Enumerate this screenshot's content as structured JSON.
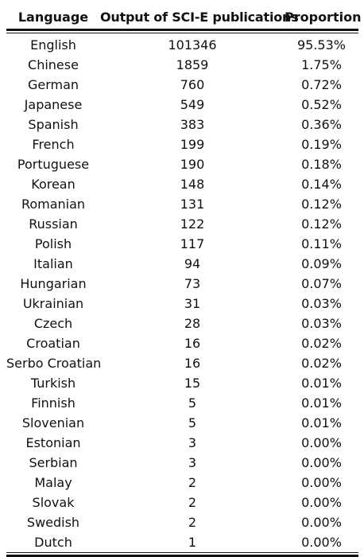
{
  "table": {
    "headers": [
      "Language",
      "Output of SCI-E publications",
      "Proportion"
    ],
    "rows": [
      [
        "English",
        "101346",
        "95.53%"
      ],
      [
        "Chinese",
        "1859",
        "1.75%"
      ],
      [
        "German",
        "760",
        "0.72%"
      ],
      [
        "Japanese",
        "549",
        "0.52%"
      ],
      [
        "Spanish",
        "383",
        "0.36%"
      ],
      [
        "French",
        "199",
        "0.19%"
      ],
      [
        "Portuguese",
        "190",
        "0.18%"
      ],
      [
        "Korean",
        "148",
        "0.14%"
      ],
      [
        "Romanian",
        "131",
        "0.12%"
      ],
      [
        "Russian",
        "122",
        "0.12%"
      ],
      [
        "Polish",
        "117",
        "0.11%"
      ],
      [
        "Italian",
        "94",
        "0.09%"
      ],
      [
        "Hungarian",
        "73",
        "0.07%"
      ],
      [
        "Ukrainian",
        "31",
        "0.03%"
      ],
      [
        "Czech",
        "28",
        "0.03%"
      ],
      [
        "Croatian",
        "16",
        "0.02%"
      ],
      [
        "Serbo Croatian",
        "16",
        "0.02%"
      ],
      [
        "Turkish",
        "15",
        "0.01%"
      ],
      [
        "Finnish",
        "5",
        "0.01%"
      ],
      [
        "Slovenian",
        "5",
        "0.01%"
      ],
      [
        "Estonian",
        "3",
        "0.00%"
      ],
      [
        "Serbian",
        "3",
        "0.00%"
      ],
      [
        "Malay",
        "2",
        "0.00%"
      ],
      [
        "Slovak",
        "2",
        "0.00%"
      ],
      [
        "Swedish",
        "2",
        "0.00%"
      ],
      [
        "Dutch",
        "1",
        "0.00%"
      ]
    ]
  }
}
